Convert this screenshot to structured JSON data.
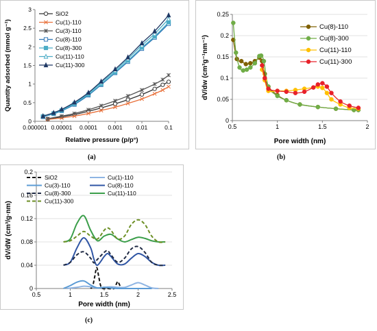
{
  "chart_data": [
    {
      "panel": "a",
      "caption": "(a)",
      "type": "line",
      "xlabel": "Relative pressure (p/p°)",
      "ylabel": "Quantity adsorbed (mmol g⁻¹)",
      "xscale": "log",
      "xlim": [
        1e-06,
        0.1
      ],
      "ylim": [
        0,
        3
      ],
      "xticks": [
        1e-06,
        1e-05,
        0.0001,
        0.001,
        0.01,
        0.1
      ],
      "xtick_labels": [
        "0.000001",
        "0.00001",
        "0.0001",
        "0.001",
        "0.01",
        "0.1"
      ],
      "yticks": [
        0,
        0.5,
        1,
        1.5,
        2,
        2.5,
        3
      ],
      "ytick_labels": [
        "0",
        "0.5",
        "1",
        "1.5",
        "2",
        "2.5",
        "3"
      ],
      "legend": "top-left",
      "series": [
        {
          "name": "SiO2",
          "color": "#333333",
          "marker": "circle-open",
          "x": [
            3e-06,
            1e-05,
            3e-05,
            0.0001,
            0.0003,
            0.001,
            0.003,
            0.01,
            0.03,
            0.06,
            0.1
          ],
          "y": [
            0.06,
            0.12,
            0.18,
            0.27,
            0.36,
            0.47,
            0.58,
            0.72,
            0.87,
            0.98,
            1.06
          ]
        },
        {
          "name": "Cu(1)-110",
          "color": "#e8703a",
          "marker": "x",
          "x": [
            3e-06,
            1e-05,
            3e-05,
            0.0001,
            0.0003,
            0.001,
            0.003,
            0.01,
            0.03,
            0.06,
            0.1
          ],
          "y": [
            0.05,
            0.09,
            0.14,
            0.21,
            0.29,
            0.38,
            0.48,
            0.6,
            0.74,
            0.84,
            0.93
          ]
        },
        {
          "name": "Cu(3)-110",
          "color": "#555555",
          "marker": "star",
          "x": [
            3e-06,
            1e-05,
            3e-05,
            0.0001,
            0.0003,
            0.001,
            0.003,
            0.01,
            0.03,
            0.06,
            0.1
          ],
          "y": [
            0.07,
            0.14,
            0.21,
            0.31,
            0.42,
            0.55,
            0.68,
            0.84,
            1.0,
            1.12,
            1.24
          ]
        },
        {
          "name": "Cu(8)-110",
          "color": "#2e75b6",
          "marker": "square-open",
          "x": [
            2e-06,
            5e-06,
            1e-05,
            3e-05,
            0.0001,
            0.0003,
            0.001,
            0.003,
            0.01,
            0.03,
            0.1
          ],
          "y": [
            0.12,
            0.2,
            0.28,
            0.45,
            0.7,
            0.98,
            1.3,
            1.6,
            1.95,
            2.25,
            2.62
          ]
        },
        {
          "name": "Cu(8)-300",
          "color": "#4bacc6",
          "marker": "square",
          "x": [
            2e-06,
            5e-06,
            1e-05,
            3e-05,
            0.0001,
            0.0003,
            0.001,
            0.003,
            0.01,
            0.03,
            0.1
          ],
          "y": [
            0.13,
            0.21,
            0.29,
            0.47,
            0.72,
            1.0,
            1.32,
            1.63,
            1.98,
            2.28,
            2.66
          ]
        },
        {
          "name": "Cu(11)-110",
          "color": "#4bacc6",
          "marker": "triangle-open",
          "x": [
            2e-06,
            5e-06,
            1e-05,
            3e-05,
            0.0001,
            0.0003,
            0.001,
            0.003,
            0.01,
            0.03,
            0.1
          ],
          "y": [
            0.14,
            0.22,
            0.31,
            0.49,
            0.75,
            1.04,
            1.36,
            1.68,
            2.04,
            2.35,
            2.75
          ]
        },
        {
          "name": "Cu(11)-300",
          "color": "#1f3864",
          "marker": "triangle",
          "x": [
            2e-06,
            5e-06,
            1e-05,
            3e-05,
            0.0001,
            0.0003,
            0.001,
            0.003,
            0.01,
            0.03,
            0.1
          ],
          "y": [
            0.14,
            0.23,
            0.32,
            0.51,
            0.77,
            1.07,
            1.4,
            1.72,
            2.1,
            2.42,
            2.85
          ]
        }
      ]
    },
    {
      "panel": "b",
      "caption": "(b)",
      "type": "line",
      "xlabel": "Pore width (nm)",
      "ylabel": "dV/dw (cm³g⁻¹nm⁻¹)",
      "xlim": [
        0.5,
        2
      ],
      "ylim": [
        0,
        0.25
      ],
      "xticks": [
        0.5,
        1,
        1.5,
        2
      ],
      "xtick_labels": [
        "0.5",
        "1",
        "1.5",
        "2"
      ],
      "yticks": [
        0,
        0.05,
        0.1,
        0.15,
        0.2,
        0.25
      ],
      "ytick_labels": [
        "0",
        "0.05",
        "0.1",
        "0.15",
        "0.2",
        "0.25"
      ],
      "legend": "top-right",
      "series": [
        {
          "name": "Cu(8)-110",
          "color": "#7f6000",
          "marker": "circle",
          "x": [
            0.51,
            0.55,
            0.6,
            0.65,
            0.7,
            0.75,
            0.8,
            0.83,
            0.86,
            0.9,
            1.0,
            1.1,
            1.25,
            1.45,
            1.65,
            1.85,
            1.9
          ],
          "y": [
            0.19,
            0.145,
            0.14,
            0.133,
            0.135,
            0.14,
            0.148,
            0.14,
            0.11,
            0.08,
            0.06,
            0.048,
            0.038,
            0.032,
            0.028,
            0.025,
            0.025
          ]
        },
        {
          "name": "Cu(8)-300",
          "color": "#70ad47",
          "marker": "circle",
          "x": [
            0.51,
            0.54,
            0.58,
            0.62,
            0.66,
            0.7,
            0.75,
            0.8,
            0.82,
            0.85,
            0.9,
            1.0,
            1.1,
            1.25,
            1.45,
            1.65,
            1.85,
            1.9
          ],
          "y": [
            0.23,
            0.16,
            0.125,
            0.118,
            0.12,
            0.125,
            0.135,
            0.152,
            0.153,
            0.14,
            0.08,
            0.058,
            0.048,
            0.038,
            0.032,
            0.028,
            0.025,
            0.025
          ]
        },
        {
          "name": "Cu(11)-110",
          "color": "#ffc000",
          "marker": "circle",
          "x": [
            0.83,
            0.86,
            0.9,
            1.0,
            1.1,
            1.2,
            1.3,
            1.4,
            1.45,
            1.5,
            1.55,
            1.6,
            1.7,
            1.8,
            1.9
          ],
          "y": [
            0.12,
            0.095,
            0.07,
            0.07,
            0.07,
            0.072,
            0.075,
            0.078,
            0.08,
            0.077,
            0.065,
            0.05,
            0.038,
            0.03,
            0.028
          ]
        },
        {
          "name": "Cu(11)-300",
          "color": "#e8212a",
          "marker": "circle",
          "x": [
            0.83,
            0.86,
            0.9,
            1.0,
            1.1,
            1.2,
            1.3,
            1.4,
            1.45,
            1.5,
            1.55,
            1.6,
            1.7,
            1.8,
            1.9
          ],
          "y": [
            0.13,
            0.1,
            0.075,
            0.07,
            0.068,
            0.065,
            0.068,
            0.078,
            0.085,
            0.088,
            0.08,
            0.065,
            0.045,
            0.035,
            0.03
          ]
        }
      ]
    },
    {
      "panel": "c",
      "caption": "(c)",
      "type": "line",
      "xlabel": "Pore width (nm)",
      "ylabel": "dV/dW  (cm³/g·nm)",
      "xlim": [
        0.5,
        2.5
      ],
      "ylim": [
        0,
        0.2
      ],
      "xticks": [
        0.5,
        1,
        1.5,
        2,
        2.5
      ],
      "xtick_labels": [
        "0.5",
        "1",
        "1.5",
        "2",
        "2.5"
      ],
      "yticks": [
        0,
        0.04,
        0.08,
        0.12,
        0.16,
        0.2
      ],
      "ytick_labels": [
        "0",
        "0.04",
        "0.08",
        "0.12",
        "0.16",
        "0.2"
      ],
      "legend": "top",
      "series": [
        {
          "name": "SiO2",
          "color": "#111111",
          "dash": true,
          "x": [
            1.3,
            1.33,
            1.36,
            1.39,
            1.42,
            1.45,
            1.48,
            1.55,
            1.65,
            1.68,
            1.7,
            1.72,
            1.75
          ],
          "y": [
            0,
            0.004,
            0.02,
            0.036,
            0.02,
            0.004,
            0,
            0,
            0,
            0.008,
            0.012,
            0.008,
            0
          ]
        },
        {
          "name": "Cu(1)-110",
          "color": "#8eb4e3",
          "dash": false,
          "x": [
            0.95,
            1.1,
            1.2,
            1.3,
            1.4,
            1.5,
            1.6,
            1.7,
            1.8,
            1.9,
            2.0,
            2.1,
            2.2,
            2.3
          ],
          "y": [
            0,
            0.002,
            0.004,
            0.003,
            0.001,
            0.002,
            0.003,
            0.002,
            0.002,
            0.006,
            0.01,
            0.006,
            0.001,
            0
          ]
        },
        {
          "name": "Cu(3)-110",
          "color": "#5b9bd5",
          "dash": false,
          "x": [
            0.9,
            1.0,
            1.1,
            1.2,
            1.3,
            1.4,
            1.5,
            1.6,
            1.7,
            1.8,
            1.9,
            2.0,
            2.1,
            2.2
          ],
          "y": [
            0,
            0.005,
            0.011,
            0.013,
            0.006,
            0.001,
            0.002,
            0.001,
            0,
            0,
            0,
            0,
            0,
            0
          ]
        },
        {
          "name": "Cu(8)-110",
          "color": "#2f55a4",
          "dash": false,
          "x": [
            0.9,
            1.0,
            1.1,
            1.2,
            1.3,
            1.35,
            1.4,
            1.5,
            1.55,
            1.6,
            1.7,
            1.8,
            1.9,
            2.0,
            2.1,
            2.2,
            2.3,
            2.4
          ],
          "y": [
            0.04,
            0.045,
            0.07,
            0.087,
            0.07,
            0.05,
            0.04,
            0.055,
            0.06,
            0.055,
            0.042,
            0.042,
            0.052,
            0.06,
            0.055,
            0.045,
            0.04,
            0.04
          ]
        },
        {
          "name": "Cu(11)-110",
          "color": "#3b9e4a",
          "dash": false,
          "x": [
            0.9,
            1.0,
            1.1,
            1.2,
            1.3,
            1.4,
            1.5,
            1.6,
            1.7,
            1.8,
            1.9,
            2.0,
            2.1,
            2.2,
            2.3,
            2.4
          ],
          "y": [
            0.08,
            0.085,
            0.112,
            0.125,
            0.1,
            0.082,
            0.09,
            0.093,
            0.085,
            0.08,
            0.084,
            0.088,
            0.086,
            0.082,
            0.08,
            0.08
          ]
        },
        {
          "name": "Cu(8)-300",
          "color": "#1f2a44",
          "dash": true,
          "x": [
            0.9,
            1.0,
            1.1,
            1.2,
            1.3,
            1.35,
            1.4,
            1.5,
            1.55,
            1.6,
            1.7,
            1.8,
            1.9,
            2.0,
            2.1,
            2.2,
            2.3,
            2.4
          ],
          "y": [
            0.04,
            0.045,
            0.058,
            0.063,
            0.052,
            0.044,
            0.05,
            0.062,
            0.065,
            0.058,
            0.045,
            0.052,
            0.068,
            0.072,
            0.062,
            0.045,
            0.04,
            0.04
          ]
        },
        {
          "name": "Cu(11)-300",
          "color": "#6b8e23",
          "dash": true,
          "x": [
            0.9,
            1.0,
            1.1,
            1.2,
            1.3,
            1.4,
            1.5,
            1.55,
            1.6,
            1.7,
            1.8,
            1.9,
            2.0,
            2.1,
            2.2,
            2.3,
            2.4
          ],
          "y": [
            0.08,
            0.082,
            0.09,
            0.098,
            0.09,
            0.085,
            0.1,
            0.104,
            0.1,
            0.085,
            0.09,
            0.11,
            0.118,
            0.11,
            0.09,
            0.08,
            0.08
          ]
        }
      ]
    }
  ]
}
